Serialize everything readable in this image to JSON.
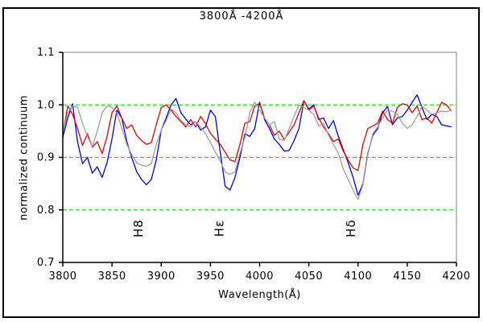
{
  "chart_data": {
    "type": "line",
    "title": "3800Å -4200Å",
    "xlabel": "Wavelength(Å)",
    "ylabel": "normalized continuum",
    "xlim": [
      3800,
      4200
    ],
    "ylim": [
      0.7,
      1.1
    ],
    "xtick_labels": [
      "3800",
      "3850",
      "3900",
      "3950",
      "4000",
      "4050",
      "4100",
      "4150",
      "4200"
    ],
    "ytick_labels": [
      "1.1",
      "1.0",
      "0.9",
      "0.8",
      "0.7"
    ],
    "grid_y_values": [
      1.0,
      0.9,
      0.8
    ],
    "grid_style": "dashed",
    "legend": "none",
    "colors": {
      "grid": "#00dd00",
      "axis": "#000000",
      "plot_border": "#808080",
      "background": "#ffffff"
    },
    "annotations": [
      {
        "text": "H8",
        "x": 3881,
        "y": 0.765,
        "rotation": -90
      },
      {
        "text": "Hε",
        "x": 3963,
        "y": 0.765,
        "rotation": -90
      },
      {
        "text": "Hδ",
        "x": 4097,
        "y": 0.765,
        "rotation": -90
      }
    ],
    "x": [
      3800,
      3805,
      3810,
      3815,
      3820,
      3825,
      3830,
      3835,
      3840,
      3845,
      3850,
      3855,
      3860,
      3865,
      3870,
      3875,
      3880,
      3885,
      3890,
      3895,
      3900,
      3905,
      3910,
      3915,
      3920,
      3925,
      3930,
      3935,
      3940,
      3945,
      3950,
      3955,
      3960,
      3965,
      3970,
      3975,
      3980,
      3985,
      3990,
      3995,
      4000,
      4005,
      4010,
      4015,
      4020,
      4025,
      4030,
      4035,
      4040,
      4045,
      4050,
      4055,
      4060,
      4065,
      4070,
      4075,
      4080,
      4085,
      4090,
      4095,
      4100,
      4105,
      4110,
      4115,
      4120,
      4125,
      4130,
      4135,
      4140,
      4145,
      4150,
      4155,
      4160,
      4165,
      4170,
      4175,
      4180,
      4185,
      4190,
      4195
    ],
    "series": [
      {
        "name": "spectrum-blue",
        "color": "#0000ee",
        "values": [
          0.938,
          0.975,
          1.002,
          0.93,
          0.888,
          0.9,
          0.87,
          0.882,
          0.862,
          0.89,
          0.935,
          0.99,
          0.975,
          0.93,
          0.9,
          0.873,
          0.858,
          0.848,
          0.858,
          0.895,
          0.952,
          0.975,
          1.0,
          1.012,
          0.985,
          0.973,
          0.962,
          0.968,
          0.952,
          0.958,
          0.99,
          0.978,
          0.91,
          0.845,
          0.838,
          0.862,
          0.9,
          0.945,
          0.94,
          0.955,
          1.005,
          0.972,
          0.955,
          0.935,
          0.925,
          0.912,
          0.913,
          0.932,
          0.955,
          1.008,
          0.992,
          1.0,
          0.972,
          0.975,
          0.955,
          0.97,
          0.94,
          0.915,
          0.89,
          0.862,
          0.828,
          0.85,
          0.908,
          0.942,
          0.955,
          0.985,
          0.997,
          0.962,
          0.975,
          0.978,
          0.99,
          1.005,
          1.019,
          0.995,
          0.972,
          0.982,
          0.978,
          0.962,
          0.96,
          0.958
        ]
      },
      {
        "name": "spectrum-red",
        "color": "#ee0000",
        "values": [
          0.943,
          0.998,
          0.982,
          0.955,
          0.923,
          0.945,
          0.919,
          0.93,
          0.907,
          0.94,
          0.985,
          0.998,
          0.975,
          0.955,
          0.962,
          0.942,
          0.932,
          0.925,
          0.928,
          0.962,
          0.995,
          1.0,
          0.99,
          0.978,
          0.968,
          0.958,
          0.972,
          0.958,
          0.978,
          0.964,
          0.946,
          0.935,
          0.925,
          0.91,
          0.895,
          0.892,
          0.925,
          0.965,
          0.968,
          0.998,
          1.003,
          0.975,
          0.962,
          0.942,
          0.95,
          0.934,
          0.948,
          0.962,
          0.985,
          1.008,
          0.99,
          0.998,
          0.975,
          0.958,
          0.945,
          0.93,
          0.935,
          0.912,
          0.895,
          0.88,
          0.875,
          0.925,
          0.955,
          0.96,
          0.965,
          0.988,
          0.972,
          0.965,
          0.995,
          1.002,
          1.0,
          0.985,
          0.998,
          0.972,
          0.975,
          0.965,
          0.985,
          1.005,
          1.0,
          0.988
        ]
      },
      {
        "name": "spectrum-gray",
        "color": "#a0a0a0",
        "values": [
          0.946,
          0.985,
          0.998,
          0.995,
          0.965,
          0.94,
          0.92,
          0.95,
          0.985,
          0.998,
          0.995,
          0.985,
          0.955,
          0.925,
          0.905,
          0.89,
          0.885,
          0.883,
          0.888,
          0.925,
          0.952,
          0.97,
          0.992,
          0.985,
          0.97,
          0.962,
          0.958,
          0.968,
          0.958,
          0.945,
          0.928,
          0.91,
          0.893,
          0.872,
          0.868,
          0.872,
          0.908,
          0.938,
          0.985,
          1.005,
          0.99,
          0.975,
          0.962,
          0.968,
          0.935,
          0.932,
          0.955,
          0.978,
          1.0,
          0.995,
          0.99,
          0.982,
          0.96,
          0.965,
          0.942,
          0.925,
          0.908,
          0.878,
          0.858,
          0.838,
          0.82,
          0.848,
          0.905,
          0.945,
          0.958,
          0.975,
          0.99,
          0.988,
          0.982,
          0.965,
          0.955,
          0.962,
          0.978,
          0.998,
          0.99,
          0.982,
          0.985,
          0.988,
          0.987,
          0.99
        ]
      }
    ]
  }
}
